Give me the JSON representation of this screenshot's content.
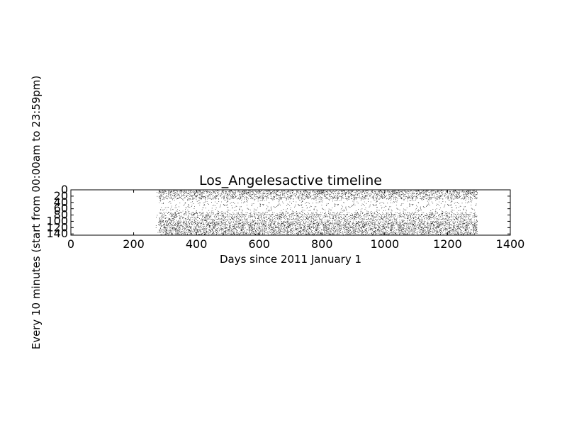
{
  "chart_data": {
    "type": "heatmap",
    "title": "Los_Angelesactive timeline",
    "xlabel": "Days since 2011 January 1",
    "ylabel": "Every 10 minutes (start from 00:00am to 23:59pm)",
    "xlim": [
      0,
      1400
    ],
    "ylim": [
      0,
      144
    ],
    "y_inverted": true,
    "x_ticks": [
      0,
      200,
      400,
      600,
      800,
      1000,
      1200,
      1400
    ],
    "y_ticks": [
      0,
      20,
      40,
      60,
      80,
      100,
      120,
      140
    ],
    "x_tick_labels": [
      "0",
      "200",
      "400",
      "600",
      "800",
      "1000",
      "1200",
      "1400"
    ],
    "y_tick_labels": [
      "0",
      "20",
      "40",
      "60",
      "80",
      "100",
      "120",
      "140"
    ],
    "grid": false,
    "legend": "none",
    "mark_color": "#000000",
    "background_color": "#ffffff",
    "activity_day_range": [
      280,
      1292
    ],
    "sparse_activity_start_day": 270,
    "activity_density_by_slot": [
      {
        "slots": [
          0,
          10
        ],
        "density": 0.35
      },
      {
        "slots": [
          10,
          30
        ],
        "density": 0.25
      },
      {
        "slots": [
          30,
          70
        ],
        "density": 0.05
      },
      {
        "slots": [
          70,
          100
        ],
        "density": 0.22
      },
      {
        "slots": [
          100,
          144
        ],
        "density": 0.32
      }
    ]
  }
}
